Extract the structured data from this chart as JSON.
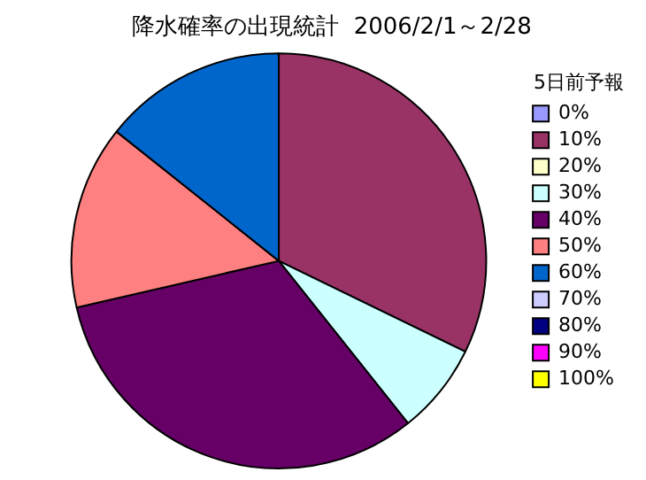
{
  "chart_data": {
    "type": "pie",
    "title": "降水確率の出現統計  2006/2/1～2/28",
    "legend_title": "5日前予報",
    "categories": [
      "0%",
      "10%",
      "20%",
      "30%",
      "40%",
      "50%",
      "60%",
      "70%",
      "80%",
      "90%",
      "100%"
    ],
    "values": [
      0,
      32.2,
      0,
      7.1,
      32.1,
      14.3,
      14.3,
      0,
      0,
      0,
      0
    ],
    "colors": [
      "#9999ff",
      "#993366",
      "#ffffcc",
      "#ccffff",
      "#660066",
      "#ff8080",
      "#0066cc",
      "#ccccff",
      "#000080",
      "#ff00ff",
      "#ffff00"
    ],
    "legend": "right"
  }
}
